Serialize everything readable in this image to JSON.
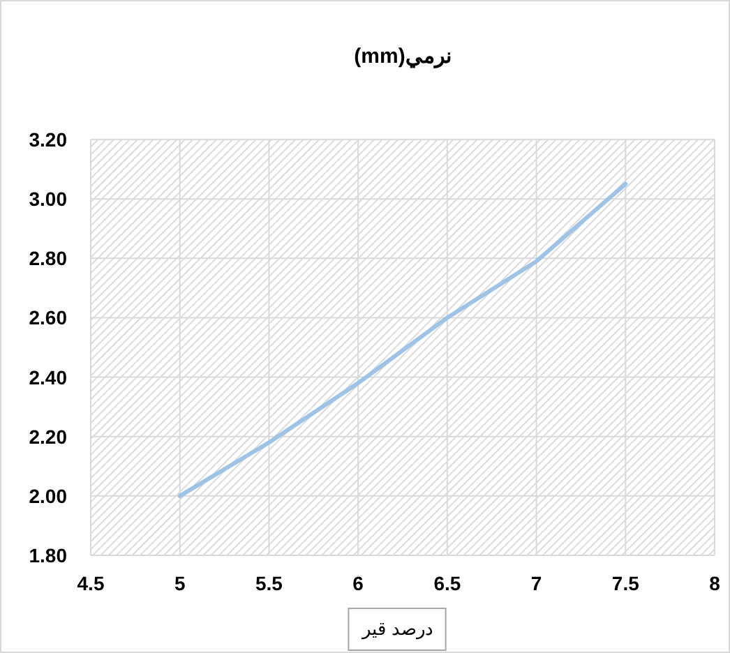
{
  "chart_data": {
    "type": "line",
    "title": "نرمي(mm)",
    "xlabel": "درصد قير",
    "x": [
      5,
      5.5,
      6,
      6.5,
      7,
      7.5
    ],
    "series": [
      {
        "color": "#9dc3e6",
        "values": [
          2.0,
          2.18,
          2.38,
          2.6,
          2.79,
          3.05
        ]
      }
    ],
    "xlim": [
      4.5,
      8
    ],
    "xticks": [
      4.5,
      5,
      5.5,
      6,
      6.5,
      7,
      7.5,
      8
    ],
    "ylim": [
      1.8,
      3.2
    ],
    "yticks": [
      {
        "value": 1.8,
        "label": "1.80"
      },
      {
        "value": 2.0,
        "label": "2.00"
      },
      {
        "value": 2.2,
        "label": "2.20"
      },
      {
        "value": 2.4,
        "label": "2.40"
      },
      {
        "value": 2.6,
        "label": "2.60"
      },
      {
        "value": 2.8,
        "label": "2.80"
      },
      {
        "value": 3.0,
        "label": "3.00"
      },
      {
        "value": 3.2,
        "label": "3.20"
      }
    ],
    "grid": true
  }
}
